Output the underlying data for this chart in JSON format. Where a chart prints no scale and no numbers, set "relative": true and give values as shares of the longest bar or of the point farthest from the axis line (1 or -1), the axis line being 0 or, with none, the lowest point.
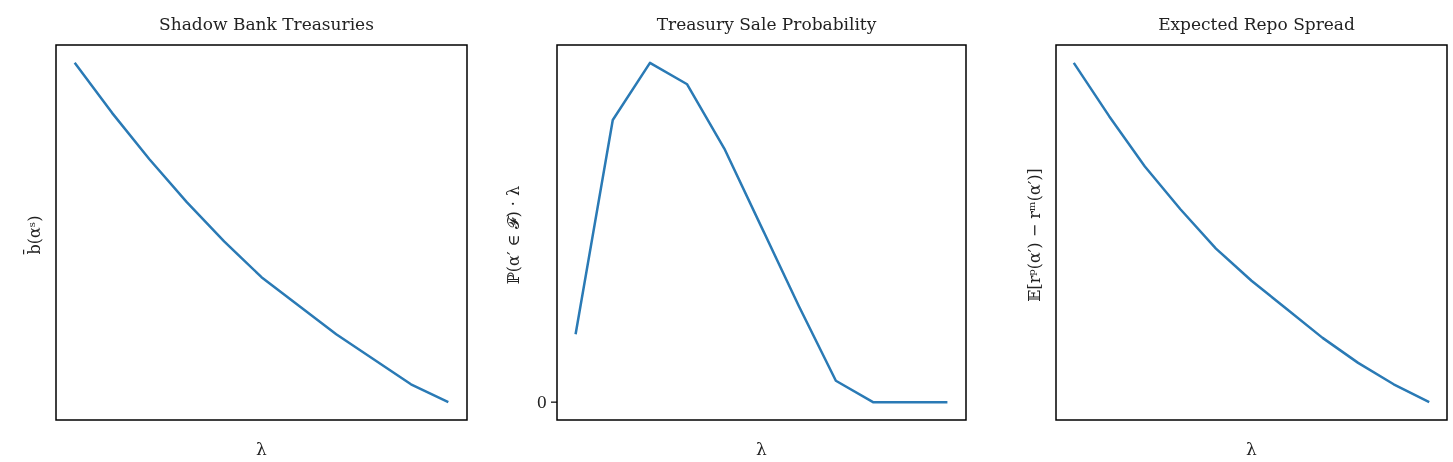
{
  "chart_data": [
    {
      "type": "line",
      "title": "Shadow Bank Treasuries",
      "xlabel": "λ",
      "ylabel": "b̄(αˢ)",
      "relative": true,
      "categories": [
        null,
        null,
        null,
        null,
        null,
        null,
        null,
        null,
        null,
        null,
        null
      ],
      "series": [
        {
          "color": "#2a7ab5",
          "values": [
            1,
            0.86,
            0.73,
            0.61,
            0.5,
            0.4,
            0.32,
            0.24,
            0.17,
            0.1,
            0.05
          ]
        }
      ],
      "marker": "none"
    },
    {
      "type": "line",
      "title": "Treasury Sale Probability",
      "xlabel": "λ",
      "ylabel": "ℙ(α′ ∈ 𝓕) · λ",
      "relative": true,
      "annotations": [
        "0"
      ],
      "categories": [
        null,
        null,
        null,
        null,
        null,
        null,
        null,
        null,
        null,
        null,
        null
      ],
      "series": [
        {
          "color": "#2a7ab5",
          "values": [
            0.24,
            0.84,
            1,
            0.94,
            0.76,
            0.54,
            0.32,
            0.11,
            0.05,
            0.05,
            0.05
          ]
        }
      ],
      "marker": "none"
    },
    {
      "type": "line",
      "title": "Expected Repo Spread",
      "xlabel": "λ",
      "ylabel": "𝔼[rᵖ(α′) − rᵐ(α′)]",
      "relative": true,
      "categories": [
        null,
        null,
        null,
        null,
        null,
        null,
        null,
        null,
        null,
        null,
        null
      ],
      "series": [
        {
          "color": "#2a7ab5",
          "values": [
            1,
            0.85,
            0.71,
            0.59,
            0.48,
            0.39,
            0.31,
            0.23,
            0.16,
            0.1,
            0.05
          ]
        }
      ],
      "marker": "none"
    }
  ]
}
